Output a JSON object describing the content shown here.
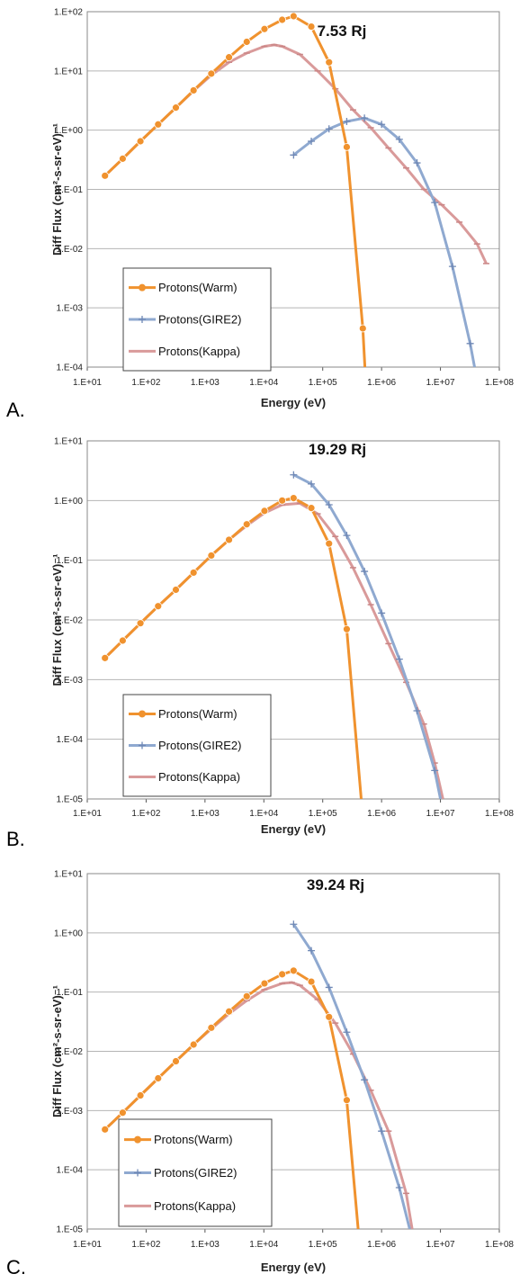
{
  "chart_data": [
    {
      "panel": "A.",
      "type": "line",
      "title": "7.53 Rj",
      "xlabel": "Energy (eV)",
      "ylabel": "Diff Flux (cm²-s-sr-eV)⁻¹",
      "xscale": "log",
      "yscale": "log",
      "xlim": [
        10,
        100000000
      ],
      "ylim": [
        0.0001,
        100
      ],
      "xticks": [
        "1.E+01",
        "1.E+02",
        "1.E+03",
        "1.E+04",
        "1.E+05",
        "1.E+06",
        "1.E+07",
        "1.E+08"
      ],
      "yticks": [
        "1.E-04",
        "1.E-03",
        "1.E-02",
        "1.E-01",
        "1.E+00",
        "1.E+01",
        "1.E+02"
      ],
      "grid": true,
      "legend_position": "bottom-left",
      "series": [
        {
          "name": "Protons(Warm)",
          "color": "#f0922e",
          "marker": "circle",
          "x": [
            20,
            40,
            80,
            160,
            320,
            640,
            1280,
            2560,
            5120,
            10240,
            20480,
            32000,
            64000,
            128000,
            256000,
            480000,
            520000
          ],
          "y": [
            0.17,
            0.33,
            0.65,
            1.25,
            2.4,
            4.7,
            9,
            17,
            31,
            51,
            73,
            84,
            56,
            14,
            0.52,
            0.00045,
            0.0001
          ]
        },
        {
          "name": "Protons(GIRE2)",
          "color": "#8fa9d0",
          "marker": "plus",
          "x": [
            32000,
            64000,
            128000,
            256000,
            512000,
            1000000,
            2000000,
            4000000,
            8000000,
            16000000,
            32000000,
            38000000
          ],
          "y": [
            0.38,
            0.65,
            1.05,
            1.4,
            1.6,
            1.25,
            0.7,
            0.28,
            0.06,
            0.005,
            0.00025,
            0.0001
          ]
        },
        {
          "name": "Protons(Kappa)",
          "color": "#d99a9a",
          "marker": "dash",
          "x": [
            20,
            40,
            80,
            160,
            320,
            640,
            1280,
            2560,
            5120,
            10240,
            15000,
            20480,
            40960,
            81920,
            163840,
            327680,
            655360,
            1310720,
            2621440,
            5242880,
            10485760,
            20971520,
            41943040,
            60000000
          ],
          "y": [
            0.17,
            0.33,
            0.65,
            1.25,
            2.4,
            4.6,
            8.5,
            14,
            20,
            26,
            27.5,
            26,
            19,
            10,
            5,
            2.2,
            1.1,
            0.5,
            0.23,
            0.1,
            0.055,
            0.028,
            0.012,
            0.0056
          ]
        }
      ]
    },
    {
      "panel": "B.",
      "type": "line",
      "title": "19.29 Rj",
      "xlabel": "Energy (eV)",
      "ylabel": "Diff Flux (cm²-s-sr-eV)⁻¹",
      "xscale": "log",
      "yscale": "log",
      "xlim": [
        10,
        100000000
      ],
      "ylim": [
        1e-05,
        10
      ],
      "xticks": [
        "1.E+01",
        "1.E+02",
        "1.E+03",
        "1.E+04",
        "1.E+05",
        "1.E+06",
        "1.E+07",
        "1.E+08"
      ],
      "yticks": [
        "1.E-05",
        "1.E-04",
        "1.E-03",
        "1.E-02",
        "1.E-01",
        "1.E+00",
        "1.E+01"
      ],
      "grid": true,
      "legend_position": "bottom-left",
      "series": [
        {
          "name": "Protons(Warm)",
          "color": "#f0922e",
          "marker": "circle",
          "x": [
            20,
            40,
            80,
            160,
            320,
            640,
            1280,
            2560,
            5120,
            10240,
            20480,
            32000,
            64000,
            128000,
            256000,
            450000
          ],
          "y": [
            0.0023,
            0.0045,
            0.0088,
            0.017,
            0.032,
            0.062,
            0.12,
            0.22,
            0.4,
            0.67,
            1.0,
            1.1,
            0.75,
            0.19,
            0.007,
            1e-05
          ]
        },
        {
          "name": "Protons(GIRE2)",
          "color": "#8fa9d0",
          "marker": "plus",
          "x": [
            32000,
            64000,
            128000,
            256000,
            512000,
            1000000,
            2000000,
            4000000,
            8000000,
            10000000
          ],
          "y": [
            2.7,
            1.9,
            0.85,
            0.26,
            0.065,
            0.013,
            0.0022,
            0.0003,
            3e-05,
            1e-05
          ]
        },
        {
          "name": "Protons(Kappa)",
          "color": "#d99a9a",
          "marker": "dash",
          "x": [
            20,
            40,
            80,
            160,
            320,
            640,
            1280,
            2560,
            5120,
            10240,
            20480,
            40960,
            81920,
            163840,
            327680,
            655360,
            1310720,
            2621440,
            5242880,
            8000000,
            11000000
          ],
          "y": [
            0.0023,
            0.0045,
            0.0088,
            0.017,
            0.032,
            0.062,
            0.12,
            0.22,
            0.38,
            0.62,
            0.85,
            0.9,
            0.6,
            0.25,
            0.075,
            0.018,
            0.004,
            0.0009,
            0.00018,
            4e-05,
            1e-05
          ]
        }
      ]
    },
    {
      "panel": "C.",
      "type": "line",
      "title": "39.24 Rj",
      "xlabel": "Energy (eV)",
      "ylabel": "Diff Flux (cm²-s-sr-eV)⁻¹",
      "xscale": "log",
      "yscale": "log",
      "xlim": [
        10,
        100000000
      ],
      "ylim": [
        1e-05,
        10
      ],
      "xticks": [
        "1.E+01",
        "1.E+02",
        "1.E+03",
        "1.E+04",
        "1.E+05",
        "1.E+06",
        "1.E+07",
        "1.E+08"
      ],
      "yticks": [
        "1.E-05",
        "1.E-04",
        "1.E-03",
        "1.E-02",
        "1.E-01",
        "1.E+00",
        "1.E+01"
      ],
      "grid": true,
      "legend_position": "bottom-left",
      "series": [
        {
          "name": "Protons(Warm)",
          "color": "#f0922e",
          "marker": "circle",
          "x": [
            20,
            40,
            80,
            160,
            320,
            640,
            1280,
            2560,
            5120,
            10240,
            20480,
            32000,
            64000,
            128000,
            256000,
            400000
          ],
          "y": [
            0.00048,
            0.00092,
            0.0018,
            0.0035,
            0.0068,
            0.013,
            0.025,
            0.047,
            0.085,
            0.14,
            0.2,
            0.23,
            0.15,
            0.038,
            0.0015,
            1e-05
          ]
        },
        {
          "name": "Protons(GIRE2)",
          "color": "#8fa9d0",
          "marker": "plus",
          "x": [
            32000,
            64000,
            128000,
            256000,
            512000,
            1000000,
            2000000,
            3000000
          ],
          "y": [
            1.4,
            0.5,
            0.12,
            0.021,
            0.0033,
            0.00045,
            5e-05,
            1e-05
          ]
        },
        {
          "name": "Protons(Kappa)",
          "color": "#d99a9a",
          "marker": "dash",
          "x": [
            20,
            40,
            80,
            160,
            320,
            640,
            1280,
            2560,
            5120,
            10240,
            20480,
            30000,
            40960,
            81920,
            163840,
            327680,
            655360,
            1310720,
            2621440,
            3300000
          ],
          "y": [
            0.00048,
            0.00092,
            0.0018,
            0.0035,
            0.0068,
            0.013,
            0.024,
            0.043,
            0.072,
            0.11,
            0.14,
            0.145,
            0.13,
            0.075,
            0.03,
            0.009,
            0.0022,
            0.00045,
            4e-05,
            1e-05
          ]
        }
      ]
    }
  ]
}
